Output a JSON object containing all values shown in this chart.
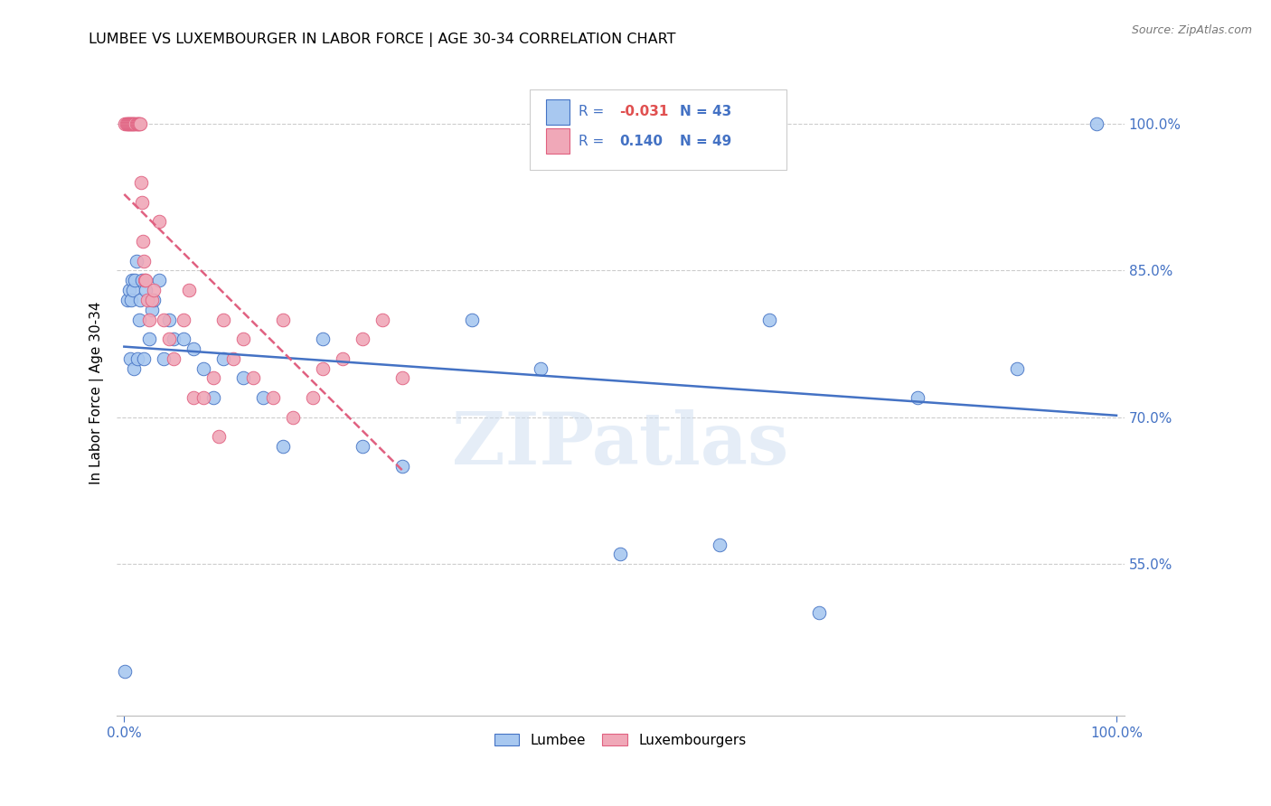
{
  "title": "LUMBEE VS LUXEMBOURGER IN LABOR FORCE | AGE 30-34 CORRELATION CHART",
  "source": "Source: ZipAtlas.com",
  "ylabel": "In Labor Force | Age 30-34",
  "yticks": [
    "55.0%",
    "70.0%",
    "85.0%",
    "100.0%"
  ],
  "ytick_vals": [
    0.55,
    0.7,
    0.85,
    1.0
  ],
  "legend_label1": "Lumbee",
  "legend_label2": "Luxembourgers",
  "R_lumbee": -0.031,
  "N_lumbee": 43,
  "R_lux": 0.14,
  "N_lux": 49,
  "color_lumbee": "#a8c8f0",
  "color_lux": "#f0a8b8",
  "trend_color_lumbee": "#4472c4",
  "trend_color_lux": "#e06080",
  "lumbee_x": [
    0.001,
    0.003,
    0.005,
    0.006,
    0.007,
    0.008,
    0.009,
    0.01,
    0.011,
    0.012,
    0.013,
    0.015,
    0.016,
    0.018,
    0.02,
    0.022,
    0.025,
    0.028,
    0.03,
    0.035,
    0.04,
    0.045,
    0.05,
    0.06,
    0.07,
    0.08,
    0.09,
    0.1,
    0.12,
    0.14,
    0.16,
    0.2,
    0.24,
    0.28,
    0.35,
    0.42,
    0.5,
    0.6,
    0.65,
    0.7,
    0.8,
    0.9,
    0.98
  ],
  "lumbee_y": [
    0.44,
    0.82,
    0.83,
    0.76,
    0.82,
    0.84,
    0.83,
    0.75,
    0.84,
    0.86,
    0.76,
    0.8,
    0.82,
    0.84,
    0.76,
    0.83,
    0.78,
    0.81,
    0.82,
    0.84,
    0.76,
    0.8,
    0.78,
    0.78,
    0.77,
    0.75,
    0.72,
    0.76,
    0.74,
    0.72,
    0.67,
    0.78,
    0.67,
    0.65,
    0.8,
    0.75,
    0.56,
    0.57,
    0.8,
    0.5,
    0.72,
    0.75,
    1.0
  ],
  "lux_x": [
    0.001,
    0.002,
    0.003,
    0.004,
    0.005,
    0.006,
    0.007,
    0.008,
    0.009,
    0.01,
    0.011,
    0.012,
    0.013,
    0.014,
    0.015,
    0.016,
    0.017,
    0.018,
    0.019,
    0.02,
    0.021,
    0.022,
    0.023,
    0.025,
    0.028,
    0.03,
    0.035,
    0.04,
    0.045,
    0.05,
    0.06,
    0.065,
    0.07,
    0.08,
    0.09,
    0.095,
    0.1,
    0.11,
    0.12,
    0.13,
    0.15,
    0.16,
    0.17,
    0.19,
    0.2,
    0.22,
    0.24,
    0.26,
    0.28
  ],
  "lux_y": [
    1.0,
    1.0,
    1.0,
    1.0,
    1.0,
    1.0,
    1.0,
    1.0,
    1.0,
    1.0,
    1.0,
    1.0,
    1.0,
    1.0,
    1.0,
    1.0,
    0.94,
    0.92,
    0.88,
    0.86,
    0.84,
    0.84,
    0.82,
    0.8,
    0.82,
    0.83,
    0.9,
    0.8,
    0.78,
    0.76,
    0.8,
    0.83,
    0.72,
    0.72,
    0.74,
    0.68,
    0.8,
    0.76,
    0.78,
    0.74,
    0.72,
    0.8,
    0.7,
    0.72,
    0.75,
    0.76,
    0.78,
    0.8,
    0.74
  ]
}
